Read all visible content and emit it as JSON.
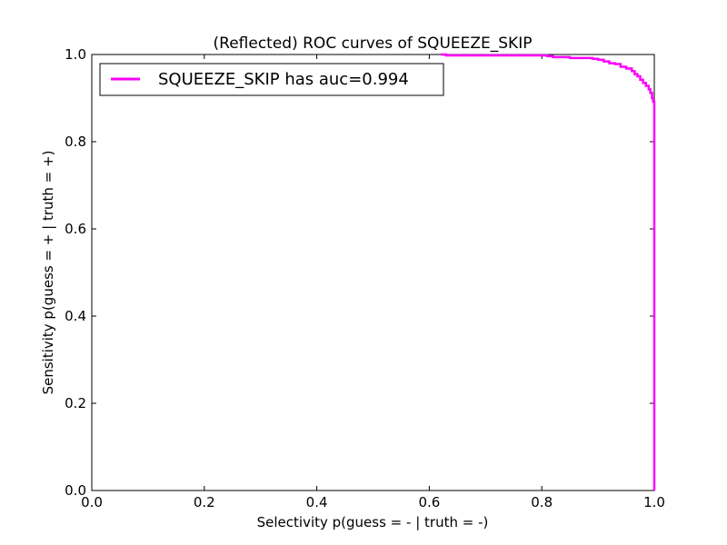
{
  "chart_data": {
    "type": "line",
    "title": "(Reflected) ROC curves of SQUEEZE_SKIP",
    "xlabel": "Selectivity p(guess = - | truth = -)",
    "ylabel": "Sensitivity p(guess = + | truth = +)",
    "xlim": [
      0.0,
      1.0
    ],
    "ylim": [
      0.0,
      1.0
    ],
    "xticks": [
      "0.0",
      "0.2",
      "0.4",
      "0.6",
      "0.8",
      "1.0"
    ],
    "yticks": [
      "0.0",
      "0.2",
      "0.4",
      "0.6",
      "0.8",
      "1.0"
    ],
    "grid": false,
    "legend_position": "top-left",
    "series": [
      {
        "name": "SQUEEZE_SKIP has auc=0.994",
        "color": "#ff00ff",
        "x": [
          0.62,
          0.63,
          0.65,
          0.68,
          0.7,
          0.72,
          0.75,
          0.77,
          0.79,
          0.8,
          0.81,
          0.82,
          0.83,
          0.85,
          0.87,
          0.89,
          0.9,
          0.91,
          0.92,
          0.93,
          0.94,
          0.95,
          0.96,
          0.965,
          0.97,
          0.975,
          0.98,
          0.985,
          0.99,
          0.993,
          0.996,
          0.998,
          1.0,
          1.0
        ],
        "y": [
          1.0,
          0.998,
          0.998,
          0.998,
          0.998,
          0.998,
          0.998,
          0.998,
          0.998,
          0.998,
          0.996,
          0.994,
          0.994,
          0.992,
          0.992,
          0.99,
          0.988,
          0.984,
          0.98,
          0.978,
          0.972,
          0.968,
          0.962,
          0.955,
          0.95,
          0.942,
          0.935,
          0.928,
          0.92,
          0.912,
          0.9,
          0.892,
          0.885,
          0.0
        ]
      }
    ]
  }
}
